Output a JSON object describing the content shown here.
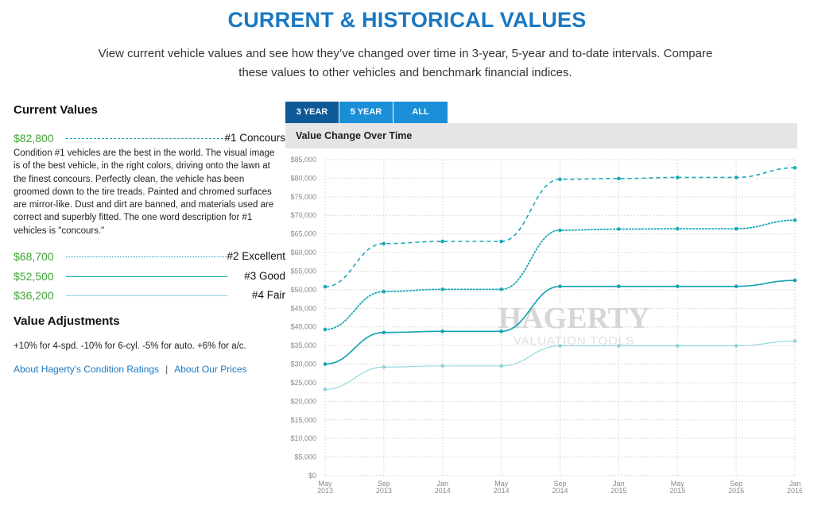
{
  "page": {
    "title": "CURRENT & HISTORICAL VALUES",
    "intro": "View current vehicle values and see how they’ve changed over time in 3-year, 5-year and to-date intervals. Compare these values to other vehicles and benchmark financial indices."
  },
  "current_values": {
    "heading": "Current Values",
    "conditions": [
      {
        "value": "$82,800",
        "label": "#1 Concours",
        "style": "dashed"
      },
      {
        "value": "$68,700",
        "label": "#2 Excellent",
        "style": "dotted"
      },
      {
        "value": "$52,500",
        "label": "#3 Good",
        "style": "solid"
      },
      {
        "value": "$36,200",
        "label": "#4 Fair",
        "style": "thin"
      }
    ],
    "description": "Condition #1 vehicles are the best in the world. The visual image is of the best vehicle, in the right colors, driving onto the lawn at the finest concours. Perfectly clean, the vehicle has been groomed down to the tire treads. Painted and chromed surfaces are mirror-like. Dust and dirt are banned, and materials used are correct and superbly fitted. The one word description for #1 vehicles is \"concours.\""
  },
  "value_adjustments": {
    "heading": "Value Adjustments",
    "text": "+10% for 4-spd. -10% for 6-cyl. -5% for auto. +6% for a/c."
  },
  "links": {
    "ratings": "About Hagerty's Condition Ratings",
    "separator": "|",
    "prices": "About Our Prices"
  },
  "tabs": [
    "3 YEAR",
    "5 YEAR",
    "ALL"
  ],
  "active_tab": "3 YEAR",
  "watermark": {
    "brand": "HAGERTY",
    "sub": "VALUATION TOOLS"
  },
  "colors": {
    "title": "#1a78c2",
    "value_green": "#3fa535",
    "tab": "#1a8ed6",
    "tab_active": "#0e5a99",
    "condition_1": "#1aa9b8",
    "condition_2": "#1aa9b8",
    "condition_3": "#13a2b3",
    "condition_4": "#8fd3dc"
  },
  "chart_data": {
    "type": "line",
    "title": "Value Change Over Time",
    "x": [
      "May 2013",
      "Sep 2013",
      "Jan 2014",
      "May 2014",
      "Sep 2014",
      "Jan 2015",
      "May 2015",
      "Sep 2015",
      "Jan 2016"
    ],
    "ylim": [
      0,
      85000
    ],
    "yticks": [
      0,
      5000,
      10000,
      15000,
      20000,
      25000,
      30000,
      35000,
      40000,
      45000,
      50000,
      55000,
      60000,
      65000,
      70000,
      75000,
      80000,
      85000
    ],
    "ytick_labels": [
      "$0",
      "$5,000",
      "$10,000",
      "$15,000",
      "$20,000",
      "$25,000",
      "$30,000",
      "$35,000",
      "$40,000",
      "$45,000",
      "$50,000",
      "$55,000",
      "$60,000",
      "$65,000",
      "$70,000",
      "$75,000",
      "$80,000",
      "$85,000"
    ],
    "grid": true,
    "series": [
      {
        "name": "#1 Concours",
        "style": "dashed",
        "values": [
          50800,
          62400,
          63000,
          63000,
          79700,
          79900,
          80200,
          80200,
          82800
        ]
      },
      {
        "name": "#2 Excellent",
        "style": "dotted",
        "values": [
          39300,
          49500,
          50100,
          50100,
          66000,
          66300,
          66400,
          66400,
          68700
        ]
      },
      {
        "name": "#3 Good",
        "style": "solid",
        "values": [
          30000,
          38500,
          38800,
          38800,
          50900,
          50900,
          50900,
          50900,
          52500
        ]
      },
      {
        "name": "#4 Fair",
        "style": "thin",
        "values": [
          23200,
          29200,
          29500,
          29500,
          34900,
          34900,
          34900,
          34900,
          36200
        ]
      }
    ]
  }
}
